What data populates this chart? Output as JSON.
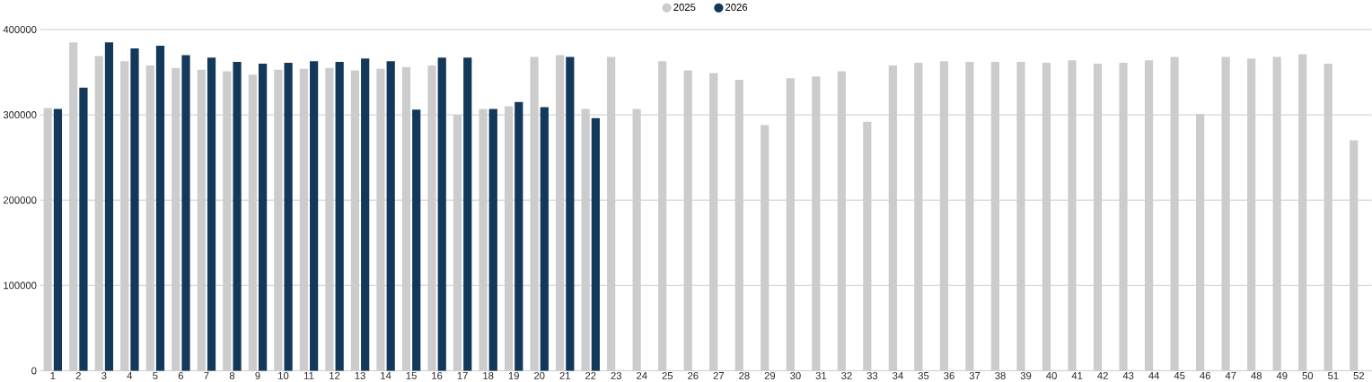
{
  "chart_data": {
    "type": "bar",
    "categories": [
      "1",
      "2",
      "3",
      "4",
      "5",
      "6",
      "7",
      "8",
      "9",
      "10",
      "11",
      "12",
      "13",
      "14",
      "15",
      "16",
      "17",
      "18",
      "19",
      "20",
      "21",
      "22",
      "23",
      "24",
      "25",
      "26",
      "27",
      "28",
      "29",
      "30",
      "31",
      "32",
      "33",
      "34",
      "35",
      "36",
      "37",
      "38",
      "39",
      "40",
      "41",
      "42",
      "43",
      "44",
      "45",
      "46",
      "47",
      "48",
      "49",
      "50",
      "51",
      "52"
    ],
    "series": [
      {
        "name": "2025",
        "color": "#cccccc",
        "values": [
          308000,
          385000,
          369000,
          363000,
          358000,
          355000,
          353000,
          351000,
          347000,
          353000,
          354000,
          355000,
          352000,
          354000,
          356000,
          358000,
          300000,
          307000,
          310000,
          368000,
          370000,
          307000,
          368000,
          307000,
          363000,
          352000,
          349000,
          341000,
          288000,
          343000,
          345000,
          351000,
          292000,
          358000,
          361000,
          363000,
          362000,
          362000,
          362000,
          361000,
          364000,
          360000,
          361000,
          364000,
          368000,
          301000,
          368000,
          366000,
          368000,
          371000,
          360000,
          270000
        ]
      },
      {
        "name": "2026",
        "color": "#12385a",
        "values": [
          307000,
          332000,
          385000,
          378000,
          381000,
          370000,
          367000,
          362000,
          360000,
          361000,
          363000,
          362000,
          366000,
          363000,
          306000,
          367000,
          367000,
          307000,
          315000,
          309000,
          368000,
          296000,
          null,
          null,
          null,
          null,
          null,
          null,
          null,
          null,
          null,
          null,
          null,
          null,
          null,
          null,
          null,
          null,
          null,
          null,
          null,
          null,
          null,
          null,
          null,
          null,
          null,
          null,
          null,
          null,
          null,
          null
        ]
      }
    ],
    "ylim": [
      0,
      400000
    ],
    "yticks": [
      0,
      100000,
      200000,
      300000,
      400000
    ],
    "grid": "y",
    "legend": "top"
  }
}
